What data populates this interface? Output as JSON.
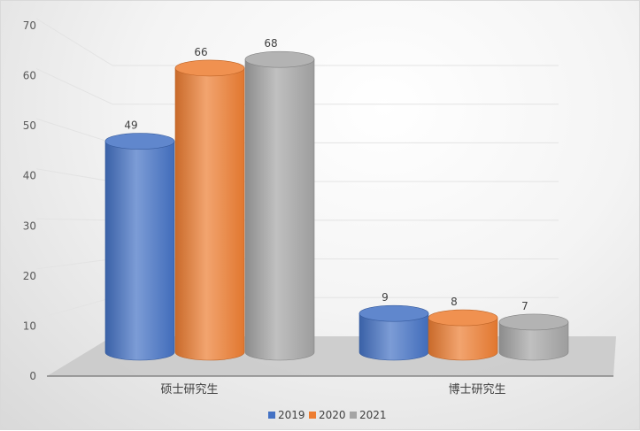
{
  "chart_data": {
    "type": "bar",
    "style": "3d-cylinder",
    "categories": [
      "硕士研究生",
      "博士研究生"
    ],
    "series": [
      {
        "name": "2019",
        "values": [
          49,
          9
        ],
        "color": "#4472c4"
      },
      {
        "name": "2020",
        "values": [
          66,
          8
        ],
        "color": "#ed7d31"
      },
      {
        "name": "2021",
        "values": [
          68,
          7
        ],
        "color": "#a5a5a5"
      }
    ],
    "ylim": [
      0,
      70
    ],
    "yticks": [
      "0",
      "10",
      "20",
      "30",
      "40",
      "50",
      "60",
      "70"
    ],
    "grid": true,
    "legend_position": "bottom",
    "data_labels": true
  }
}
